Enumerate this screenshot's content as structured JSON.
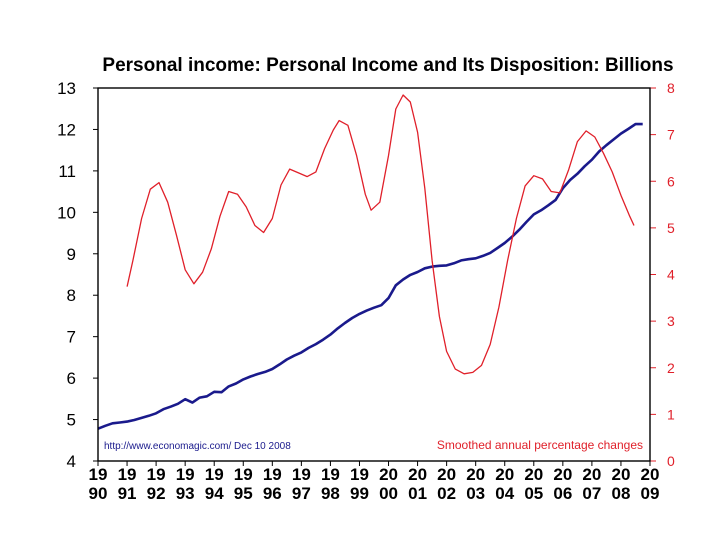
{
  "chart_data": {
    "type": "line",
    "title": "Personal income: Personal Income and Its Disposition: Billions",
    "x_ticks": [
      {
        "year": 1990,
        "label_top": "19",
        "label_bottom": "90"
      },
      {
        "year": 1991,
        "label_top": "19",
        "label_bottom": "91"
      },
      {
        "year": 1992,
        "label_top": "19",
        "label_bottom": "92"
      },
      {
        "year": 1993,
        "label_top": "19",
        "label_bottom": "93"
      },
      {
        "year": 1994,
        "label_top": "19",
        "label_bottom": "94"
      },
      {
        "year": 1995,
        "label_top": "19",
        "label_bottom": "95"
      },
      {
        "year": 1996,
        "label_top": "19",
        "label_bottom": "96"
      },
      {
        "year": 1997,
        "label_top": "19",
        "label_bottom": "97"
      },
      {
        "year": 1998,
        "label_top": "19",
        "label_bottom": "98"
      },
      {
        "year": 1999,
        "label_top": "19",
        "label_bottom": "99"
      },
      {
        "year": 2000,
        "label_top": "20",
        "label_bottom": "00"
      },
      {
        "year": 2001,
        "label_top": "20",
        "label_bottom": "01"
      },
      {
        "year": 2002,
        "label_top": "20",
        "label_bottom": "02"
      },
      {
        "year": 2003,
        "label_top": "20",
        "label_bottom": "03"
      },
      {
        "year": 2004,
        "label_top": "20",
        "label_bottom": "04"
      },
      {
        "year": 2005,
        "label_top": "20",
        "label_bottom": "05"
      },
      {
        "year": 2006,
        "label_top": "20",
        "label_bottom": "06"
      },
      {
        "year": 2007,
        "label_top": "20",
        "label_bottom": "07"
      },
      {
        "year": 2008,
        "label_top": "20",
        "label_bottom": "08"
      },
      {
        "year": 2009,
        "label_top": "20",
        "label_bottom": "09"
      }
    ],
    "xlim": [
      1990,
      2009
    ],
    "y_left": {
      "ticks": [
        "4",
        "5",
        "6",
        "7",
        "8",
        "9",
        "10",
        "11",
        "12",
        "13"
      ],
      "ylim": [
        4,
        13
      ]
    },
    "y_right": {
      "ticks": [
        "0",
        "1",
        "2",
        "3",
        "4",
        "5",
        "6",
        "7",
        "8"
      ],
      "ylim": [
        0,
        8
      ]
    },
    "grid": false,
    "series": [
      {
        "name": "Personal income",
        "axis": "left",
        "color": "#1a1a8c",
        "points": [
          [
            1990.0,
            4.78
          ],
          [
            1990.25,
            4.85
          ],
          [
            1990.5,
            4.91
          ],
          [
            1990.75,
            4.93
          ],
          [
            1991.0,
            4.95
          ],
          [
            1991.25,
            4.99
          ],
          [
            1991.5,
            5.04
          ],
          [
            1991.75,
            5.09
          ],
          [
            1992.0,
            5.15
          ],
          [
            1992.25,
            5.25
          ],
          [
            1992.5,
            5.31
          ],
          [
            1992.75,
            5.38
          ],
          [
            1993.0,
            5.49
          ],
          [
            1993.25,
            5.41
          ],
          [
            1993.5,
            5.53
          ],
          [
            1993.75,
            5.56
          ],
          [
            1994.0,
            5.67
          ],
          [
            1994.25,
            5.66
          ],
          [
            1994.5,
            5.8
          ],
          [
            1994.75,
            5.87
          ],
          [
            1995.0,
            5.97
          ],
          [
            1995.25,
            6.04
          ],
          [
            1995.5,
            6.1
          ],
          [
            1995.75,
            6.15
          ],
          [
            1996.0,
            6.22
          ],
          [
            1996.25,
            6.33
          ],
          [
            1996.5,
            6.45
          ],
          [
            1996.75,
            6.54
          ],
          [
            1997.0,
            6.62
          ],
          [
            1997.25,
            6.73
          ],
          [
            1997.5,
            6.82
          ],
          [
            1997.75,
            6.93
          ],
          [
            1998.0,
            7.05
          ],
          [
            1998.25,
            7.2
          ],
          [
            1998.5,
            7.33
          ],
          [
            1998.75,
            7.45
          ],
          [
            1999.0,
            7.55
          ],
          [
            1999.25,
            7.63
          ],
          [
            1999.5,
            7.7
          ],
          [
            1999.75,
            7.76
          ],
          [
            2000.0,
            7.93
          ],
          [
            2000.25,
            8.24
          ],
          [
            2000.5,
            8.38
          ],
          [
            2000.75,
            8.49
          ],
          [
            2001.0,
            8.56
          ],
          [
            2001.25,
            8.65
          ],
          [
            2001.5,
            8.69
          ],
          [
            2001.75,
            8.71
          ],
          [
            2002.0,
            8.72
          ],
          [
            2002.25,
            8.77
          ],
          [
            2002.5,
            8.84
          ],
          [
            2002.75,
            8.87
          ],
          [
            2003.0,
            8.89
          ],
          [
            2003.25,
            8.95
          ],
          [
            2003.5,
            9.02
          ],
          [
            2003.75,
            9.14
          ],
          [
            2004.0,
            9.26
          ],
          [
            2004.25,
            9.41
          ],
          [
            2004.5,
            9.58
          ],
          [
            2004.75,
            9.77
          ],
          [
            2005.0,
            9.95
          ],
          [
            2005.25,
            10.05
          ],
          [
            2005.5,
            10.17
          ],
          [
            2005.75,
            10.3
          ],
          [
            2006.0,
            10.58
          ],
          [
            2006.25,
            10.78
          ],
          [
            2006.5,
            10.93
          ],
          [
            2006.75,
            11.11
          ],
          [
            2007.0,
            11.27
          ],
          [
            2007.25,
            11.47
          ],
          [
            2007.5,
            11.62
          ],
          [
            2007.75,
            11.76
          ],
          [
            2008.0,
            11.9
          ],
          [
            2008.25,
            12.01
          ],
          [
            2008.5,
            12.13
          ],
          [
            2008.75,
            12.13
          ]
        ]
      },
      {
        "name": "Smoothed annual percentage changes",
        "axis": "right",
        "color": "#e0202a",
        "points": [
          [
            1991.0,
            3.74
          ],
          [
            1991.2,
            4.3
          ],
          [
            1991.5,
            5.2
          ],
          [
            1991.8,
            5.83
          ],
          [
            1992.1,
            5.97
          ],
          [
            1992.4,
            5.55
          ],
          [
            1992.7,
            4.85
          ],
          [
            1993.0,
            4.1
          ],
          [
            1993.3,
            3.8
          ],
          [
            1993.6,
            4.05
          ],
          [
            1993.9,
            4.55
          ],
          [
            1994.2,
            5.25
          ],
          [
            1994.5,
            5.78
          ],
          [
            1994.8,
            5.72
          ],
          [
            1995.1,
            5.45
          ],
          [
            1995.4,
            5.05
          ],
          [
            1995.7,
            4.9
          ],
          [
            1996.0,
            5.2
          ],
          [
            1996.3,
            5.92
          ],
          [
            1996.6,
            6.26
          ],
          [
            1996.9,
            6.18
          ],
          [
            1997.2,
            6.1
          ],
          [
            1997.5,
            6.2
          ],
          [
            1997.8,
            6.7
          ],
          [
            1998.1,
            7.1
          ],
          [
            1998.3,
            7.3
          ],
          [
            1998.6,
            7.2
          ],
          [
            1998.9,
            6.55
          ],
          [
            1999.2,
            5.72
          ],
          [
            1999.4,
            5.38
          ],
          [
            1999.7,
            5.55
          ],
          [
            2000.0,
            6.55
          ],
          [
            2000.25,
            7.55
          ],
          [
            2000.5,
            7.85
          ],
          [
            2000.75,
            7.7
          ],
          [
            2001.0,
            7.05
          ],
          [
            2001.25,
            5.85
          ],
          [
            2001.5,
            4.3
          ],
          [
            2001.75,
            3.1
          ],
          [
            2002.0,
            2.35
          ],
          [
            2002.3,
            1.97
          ],
          [
            2002.6,
            1.87
          ],
          [
            2002.9,
            1.9
          ],
          [
            2003.2,
            2.05
          ],
          [
            2003.5,
            2.5
          ],
          [
            2003.8,
            3.3
          ],
          [
            2004.1,
            4.3
          ],
          [
            2004.4,
            5.2
          ],
          [
            2004.7,
            5.9
          ],
          [
            2005.0,
            6.12
          ],
          [
            2005.3,
            6.05
          ],
          [
            2005.6,
            5.78
          ],
          [
            2005.9,
            5.75
          ],
          [
            2006.2,
            6.25
          ],
          [
            2006.5,
            6.85
          ],
          [
            2006.8,
            7.08
          ],
          [
            2007.1,
            6.95
          ],
          [
            2007.4,
            6.6
          ],
          [
            2007.7,
            6.2
          ],
          [
            2008.0,
            5.7
          ],
          [
            2008.3,
            5.25
          ],
          [
            2008.45,
            5.05
          ]
        ]
      }
    ],
    "source_note": "http://www.economagic.com/  Dec 10 2008",
    "legend_label": "Smoothed annual percentage changes",
    "frame_color": "#000000",
    "right_axis_color": "#e0202a"
  }
}
